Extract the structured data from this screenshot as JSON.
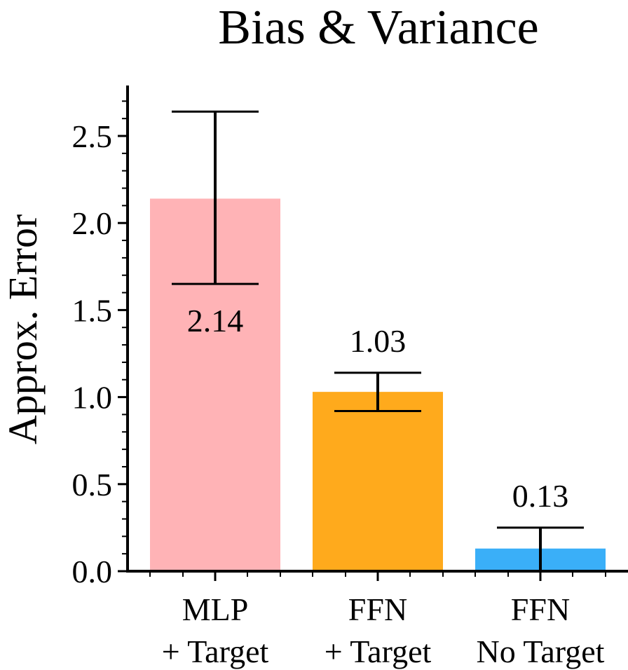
{
  "chart_data": {
    "type": "bar",
    "title": "Bias & Variance",
    "ylabel": "Approx. Error",
    "xlabel": "",
    "ylim": [
      0,
      2.78
    ],
    "yticks": [
      "0.0",
      "0.5",
      "1.0",
      "1.5",
      "2.0",
      "2.5"
    ],
    "categories": [
      [
        "MLP",
        "+ Target"
      ],
      [
        "FFN",
        "+ Target"
      ],
      [
        "FFN",
        "No Target"
      ]
    ],
    "values": [
      2.14,
      1.03,
      0.13
    ],
    "data_labels": [
      "2.14",
      "1.03",
      "0.13"
    ],
    "error_low": [
      1.65,
      0.92,
      0.0
    ],
    "error_high": [
      2.64,
      1.14,
      0.25
    ],
    "colors": [
      "#ffb3b6",
      "#ffaa1c",
      "#3aaff8"
    ],
    "grid": false,
    "legend": "none"
  }
}
